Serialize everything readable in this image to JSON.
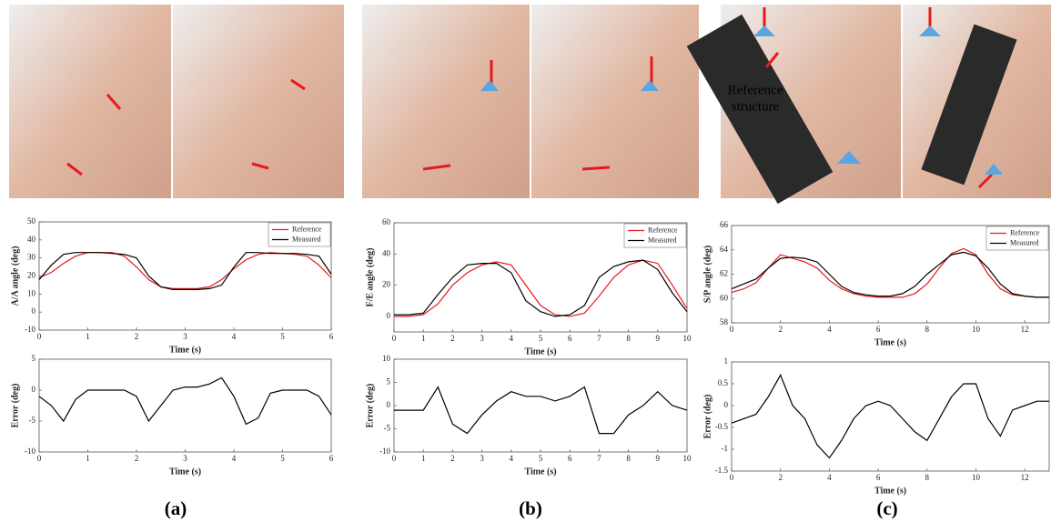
{
  "panel_labels": [
    "(a)",
    "(b)",
    "(c)"
  ],
  "photo_annotation_lines": [
    "Reference",
    "structure"
  ],
  "chart_data": [
    {
      "type": "line",
      "xlabel": "Time (s)",
      "ylabel": "A/A angle (deg)",
      "legend": "upper right",
      "x": [
        0,
        0.25,
        0.5,
        0.75,
        1,
        1.25,
        1.5,
        1.75,
        2,
        2.25,
        2.5,
        2.75,
        3,
        3.25,
        3.5,
        3.75,
        4,
        4.25,
        4.5,
        4.75,
        5,
        5.25,
        5.5,
        5.75,
        6
      ],
      "series": [
        {
          "name": "Reference",
          "color": "#e8191c",
          "values": [
            19,
            22,
            27,
            31,
            33,
            33,
            33,
            31,
            25,
            18,
            14,
            13,
            13,
            13,
            14,
            18,
            24,
            29,
            32,
            33,
            32.5,
            32,
            31,
            26,
            19
          ]
        },
        {
          "name": "Measured",
          "color": "#000000",
          "values": [
            18,
            26,
            32,
            33,
            33,
            33,
            32.5,
            32,
            30,
            20,
            14,
            12.5,
            12.5,
            12.5,
            13,
            15,
            25,
            33,
            33,
            32.5,
            32.5,
            32.5,
            32,
            31,
            21
          ]
        }
      ],
      "xlim": [
        0,
        6
      ],
      "xticks": [
        0,
        1,
        2,
        3,
        4,
        5,
        6
      ],
      "ylim": [
        -10,
        50
      ],
      "yticks": [
        -10,
        0,
        10,
        20,
        30,
        40,
        50
      ]
    },
    {
      "type": "line",
      "xlabel": "Time (s)",
      "ylabel": "Error (deg)",
      "color": "#000000",
      "x": [
        0,
        0.25,
        0.5,
        0.75,
        1,
        1.25,
        1.5,
        1.75,
        2,
        2.25,
        2.5,
        2.75,
        3,
        3.25,
        3.5,
        3.75,
        4,
        4.25,
        4.5,
        4.75,
        5,
        5.25,
        5.5,
        5.75,
        6
      ],
      "values": [
        -1,
        -2.5,
        -5,
        -1.5,
        0,
        0,
        0,
        0,
        -1,
        -5,
        -2.5,
        0,
        0.5,
        0.5,
        1,
        2,
        -1,
        -5.5,
        -4.5,
        -0.5,
        0,
        0,
        0,
        -1,
        -4
      ],
      "xlim": [
        0,
        6
      ],
      "xticks": [
        0,
        1,
        2,
        3,
        4,
        5,
        6
      ],
      "ylim": [
        -10,
        5
      ],
      "yticks": [
        -10,
        -5,
        0,
        5
      ]
    },
    {
      "type": "line",
      "xlabel": "Time (s)",
      "ylabel": "F/E angle (deg)",
      "legend": "upper right",
      "x": [
        0,
        0.5,
        1,
        1.5,
        2,
        2.5,
        3,
        3.5,
        4,
        4.5,
        5,
        5.5,
        6,
        6.5,
        7,
        7.5,
        8,
        8.5,
        9,
        9.5,
        10
      ],
      "series": [
        {
          "name": "Reference",
          "color": "#e8191c",
          "values": [
            0,
            0,
            1,
            8,
            20,
            28,
            33,
            35,
            33,
            20,
            7,
            1,
            0,
            2,
            13,
            25,
            33,
            36,
            34,
            20,
            5
          ]
        },
        {
          "name": "Measured",
          "color": "#000000",
          "values": [
            1,
            1,
            2,
            14,
            25,
            33,
            34,
            34,
            28,
            10,
            3,
            0,
            1,
            7,
            25,
            32,
            35,
            36,
            30,
            15,
            3
          ]
        }
      ],
      "xlim": [
        0,
        10
      ],
      "xticks": [
        0,
        1,
        2,
        3,
        4,
        5,
        6,
        7,
        8,
        9,
        10
      ],
      "ylim": [
        -10,
        60
      ],
      "yticks": [
        0,
        20,
        40,
        60
      ]
    },
    {
      "type": "line",
      "xlabel": "Time (s)",
      "ylabel": "Error (deg)",
      "color": "#000000",
      "x": [
        0,
        0.5,
        1,
        1.5,
        2,
        2.5,
        3,
        3.5,
        4,
        4.5,
        5,
        5.5,
        6,
        6.5,
        7,
        7.5,
        8,
        8.5,
        9,
        9.5,
        10
      ],
      "values": [
        -1,
        -1,
        -1,
        4,
        -4,
        -6,
        -2,
        1,
        3,
        2,
        2,
        1,
        2,
        4,
        -6,
        -6,
        -2,
        0,
        3,
        0,
        -1
      ],
      "xlim": [
        0,
        10
      ],
      "xticks": [
        0,
        1,
        2,
        3,
        4,
        5,
        6,
        7,
        8,
        9,
        10
      ],
      "ylim": [
        -10,
        10
      ],
      "yticks": [
        -10,
        -5,
        0,
        5,
        10
      ]
    },
    {
      "type": "line",
      "xlabel": "Time (s)",
      "ylabel": "S/P angle (deg)",
      "legend": "upper right",
      "x": [
        0,
        0.5,
        1,
        1.5,
        2,
        2.5,
        3,
        3.5,
        4,
        4.5,
        5,
        5.5,
        6,
        6.5,
        7,
        7.5,
        8,
        8.5,
        9,
        9.5,
        10,
        10.5,
        11,
        11.5,
        12,
        12.5,
        13
      ],
      "series": [
        {
          "name": "Reference",
          "color": "#e8191c",
          "values": [
            60.5,
            60.8,
            61.3,
            62.5,
            63.6,
            63.3,
            63,
            62.5,
            61.5,
            60.8,
            60.4,
            60.2,
            60.1,
            60.1,
            60.1,
            60.4,
            61.2,
            62.5,
            63.7,
            64.1,
            63.6,
            62,
            60.8,
            60.3,
            60.2,
            60.1,
            60.1
          ]
        },
        {
          "name": "Measured",
          "color": "#000000",
          "values": [
            60.8,
            61.2,
            61.6,
            62.5,
            63.3,
            63.4,
            63.3,
            63,
            62,
            61,
            60.5,
            60.3,
            60.2,
            60.2,
            60.4,
            61,
            62,
            62.8,
            63.6,
            63.8,
            63.5,
            62.5,
            61.2,
            60.4,
            60.2,
            60.1,
            60.1
          ]
        }
      ],
      "xlim": [
        0,
        13
      ],
      "xticks": [
        0,
        2,
        4,
        6,
        8,
        10,
        12
      ],
      "ylim": [
        58,
        66
      ],
      "yticks": [
        58,
        60,
        62,
        64,
        66
      ]
    },
    {
      "type": "line",
      "xlabel": "Time (s)",
      "ylabel": "Error (deg)",
      "color": "#000000",
      "x": [
        0,
        0.5,
        1,
        1.5,
        2,
        2.5,
        3,
        3.5,
        4,
        4.5,
        5,
        5.5,
        6,
        6.5,
        7,
        7.5,
        8,
        8.5,
        9,
        9.5,
        10,
        10.5,
        11,
        11.5,
        12,
        12.5,
        13
      ],
      "values": [
        -0.4,
        -0.3,
        -0.2,
        0.2,
        0.7,
        0,
        -0.3,
        -0.9,
        -1.2,
        -0.8,
        -0.3,
        0,
        0.1,
        0,
        -0.3,
        -0.6,
        -0.8,
        -0.3,
        0.2,
        0.5,
        0.5,
        -0.3,
        -0.7,
        -0.1,
        0,
        0.1,
        0.1
      ],
      "xlim": [
        0,
        13
      ],
      "xticks": [
        0,
        2,
        4,
        6,
        8,
        10,
        12
      ],
      "ylim": [
        -1.5,
        1
      ],
      "yticks": [
        -1.5,
        -1,
        -0.5,
        0,
        0.5,
        1
      ]
    }
  ]
}
